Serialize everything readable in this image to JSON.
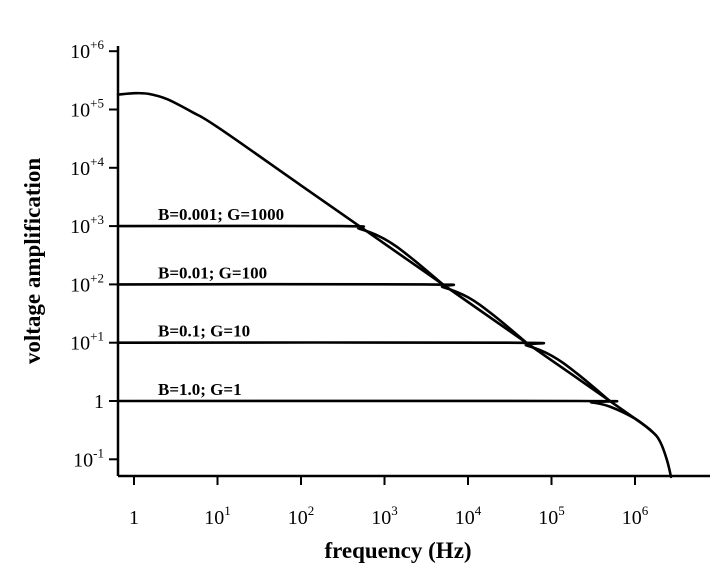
{
  "chart_data": {
    "type": "line",
    "title": "",
    "xlabel": "frequency (Hz)",
    "ylabel": "voltage amplification",
    "x_scale": "log",
    "y_scale": "log",
    "xlim": [
      0.5,
      5000000
    ],
    "ylim": [
      0.05,
      1000000
    ],
    "grid": false,
    "legend": "none",
    "x_ticks": [
      {
        "value": 1,
        "base": "1",
        "exp": ""
      },
      {
        "value": 10,
        "base": "10",
        "exp": "1"
      },
      {
        "value": 100,
        "base": "10",
        "exp": "2"
      },
      {
        "value": 1000,
        "base": "10",
        "exp": "3"
      },
      {
        "value": 10000,
        "base": "10",
        "exp": "4"
      },
      {
        "value": 100000,
        "base": "10",
        "exp": "5"
      },
      {
        "value": 1000000,
        "base": "10",
        "exp": "6"
      }
    ],
    "y_ticks": [
      {
        "value": 0.1,
        "base": "10",
        "exp": "-1"
      },
      {
        "value": 1,
        "base": "1",
        "exp": ""
      },
      {
        "value": 10,
        "base": "10",
        "exp": "+1"
      },
      {
        "value": 100,
        "base": "10",
        "exp": "+2"
      },
      {
        "value": 1000,
        "base": "10",
        "exp": "+3"
      },
      {
        "value": 10000,
        "base": "10",
        "exp": "+4"
      },
      {
        "value": 100000,
        "base": "10",
        "exp": "+5"
      },
      {
        "value": 1000000,
        "base": "10",
        "exp": "+6"
      }
    ],
    "series": [
      {
        "name": "",
        "x": [
          0.5,
          1,
          1.5,
          2.5,
          5,
          10,
          100,
          1000,
          10000,
          100000,
          1000000,
          1600000,
          2000000,
          2400000,
          2700000
        ],
        "y": [
          180000,
          190000,
          185000,
          150000,
          90000,
          50000,
          5000,
          500,
          50,
          5,
          0.5,
          0.3,
          0.2,
          0.1,
          0.05
        ]
      },
      {
        "name": "B=0.001; G=1000",
        "x": [
          0.5,
          300,
          500,
          1000,
          2000,
          5000
        ],
        "y": [
          1000,
          1000,
          900,
          600,
          300,
          100
        ]
      },
      {
        "name": "B=0.01; G=100",
        "x": [
          0.5,
          3000,
          5000,
          10000,
          20000,
          50000
        ],
        "y": [
          100,
          100,
          90,
          60,
          30,
          10
        ]
      },
      {
        "name": "B=0.1; G=10",
        "x": [
          0.5,
          30000,
          50000,
          100000,
          200000,
          500000
        ],
        "y": [
          10,
          10,
          9,
          6,
          3,
          1
        ]
      },
      {
        "name": "B=1.0; G=1",
        "x": [
          0.5,
          200000,
          300000,
          500000,
          1000000,
          1600000
        ],
        "y": [
          1,
          1,
          0.95,
          0.8,
          0.5,
          0.3
        ]
      }
    ],
    "curve_labels": [
      {
        "text": "B=0.001; G=1000",
        "x": 1,
        "y": 1000
      },
      {
        "text": "B=0.01; G=100",
        "x": 1,
        "y": 100
      },
      {
        "text": "B=0.1; G=10",
        "x": 1,
        "y": 10
      },
      {
        "text": "B=1.0; G=1",
        "x": 1,
        "y": 1
      }
    ]
  }
}
